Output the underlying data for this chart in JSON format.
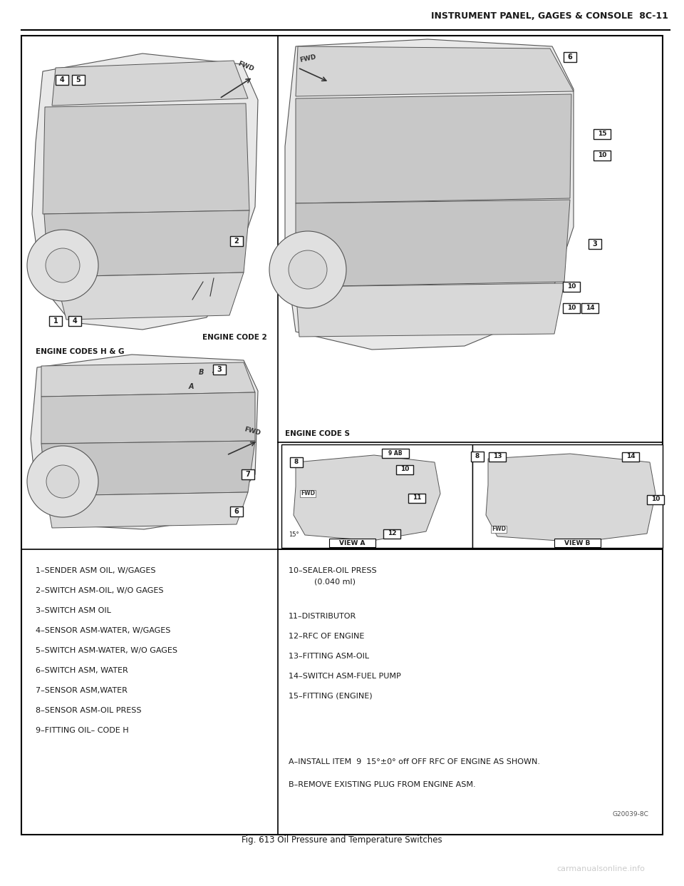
{
  "page_title": "INSTRUMENT PANEL, GAGES & CONSOLE  8C-11",
  "fig_caption": "Fig. 613 Oil Pressure and Temperature Switches",
  "watermark": "carmanualsonline.info",
  "bg_color": "#ffffff",
  "border_color": "#000000",
  "text_color": "#1a1a1a",
  "title_fontsize": 9,
  "body_fontsize": 8,
  "small_fontsize": 7,
  "left_labels": [
    "1–SENDER ASM OIL, W/GAGES",
    "2–SWITCH ASM-OIL, W/O GAGES",
    "3–SWITCH ASM OIL",
    "4–SENSOR ASM-WATER, W/GAGES",
    "5–SWITCH ASM-WATER, W/O GAGES",
    "6–SWITCH ASM, WATER",
    "7–SENSOR ASM,WATER",
    "8–SENSOR ASM-OIL PRESS",
    "9–FITTING OIL– CODE H"
  ],
  "right_labels": [
    "10–SEALER-OIL PRESS",
    "      (0.040 ml)",
    "11–DISTRIBUTOR",
    "12–RFC OF ENGINE",
    "13–FITTING ASM-OIL",
    "14–SWITCH ASM-FUEL PUMP",
    "15–FITTING (ENGINE)"
  ],
  "note_a": "A–INSTALL ITEM  9  15°±0° off OFF RFC OF ENGINE AS SHOWN.",
  "note_b": "B–REMOVE EXISTING PLUG FROM ENGINE ASM.",
  "engine_code2": "ENGINE CODE 2",
  "engine_codes_hg": "ENGINE CODES H & G",
  "engine_code_s": "ENGINE CODE S",
  "view_a": "VIEW A",
  "view_b": "VIEW B",
  "ref_code": "G20039-8C"
}
